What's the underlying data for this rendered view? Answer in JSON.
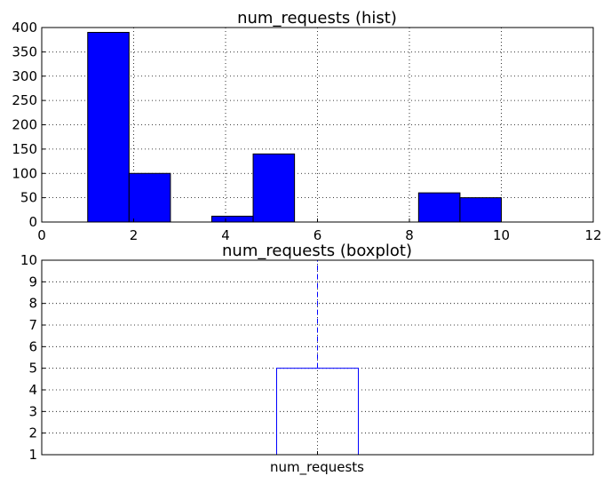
{
  "chart_data": [
    {
      "type": "bar",
      "title": "num_requests (hist)",
      "xlim": [
        0,
        12
      ],
      "ylim": [
        0,
        400
      ],
      "xticks": [
        "0",
        "2",
        "4",
        "6",
        "8",
        "10",
        "12"
      ],
      "yticks": [
        "0",
        "50",
        "100",
        "150",
        "200",
        "250",
        "300",
        "350",
        "400"
      ],
      "grid": true,
      "bins": [
        {
          "x0": 1.0,
          "x1": 1.9,
          "count": 390
        },
        {
          "x0": 1.9,
          "x1": 2.8,
          "count": 100
        },
        {
          "x0": 2.8,
          "x1": 3.7,
          "count": 0
        },
        {
          "x0": 3.7,
          "x1": 4.6,
          "count": 12
        },
        {
          "x0": 4.6,
          "x1": 5.5,
          "count": 140
        },
        {
          "x0": 5.5,
          "x1": 6.4,
          "count": 0
        },
        {
          "x0": 6.4,
          "x1": 7.3,
          "count": 0
        },
        {
          "x0": 7.3,
          "x1": 8.2,
          "count": 0
        },
        {
          "x0": 8.2,
          "x1": 9.1,
          "count": 60
        },
        {
          "x0": 9.1,
          "x1": 10.0,
          "count": 50
        }
      ]
    },
    {
      "type": "boxplot",
      "title": "num_requests (boxplot)",
      "categories": [
        "num_requests"
      ],
      "ylim": [
        1,
        10
      ],
      "yticks": [
        "1",
        "2",
        "3",
        "4",
        "5",
        "6",
        "7",
        "8",
        "9",
        "10"
      ],
      "grid": true,
      "box": {
        "min": 1,
        "q1": 1,
        "median": 1,
        "q3": 5,
        "max": 10
      },
      "colors": {
        "box": "#0000ff",
        "median": "#ff0000"
      }
    }
  ]
}
